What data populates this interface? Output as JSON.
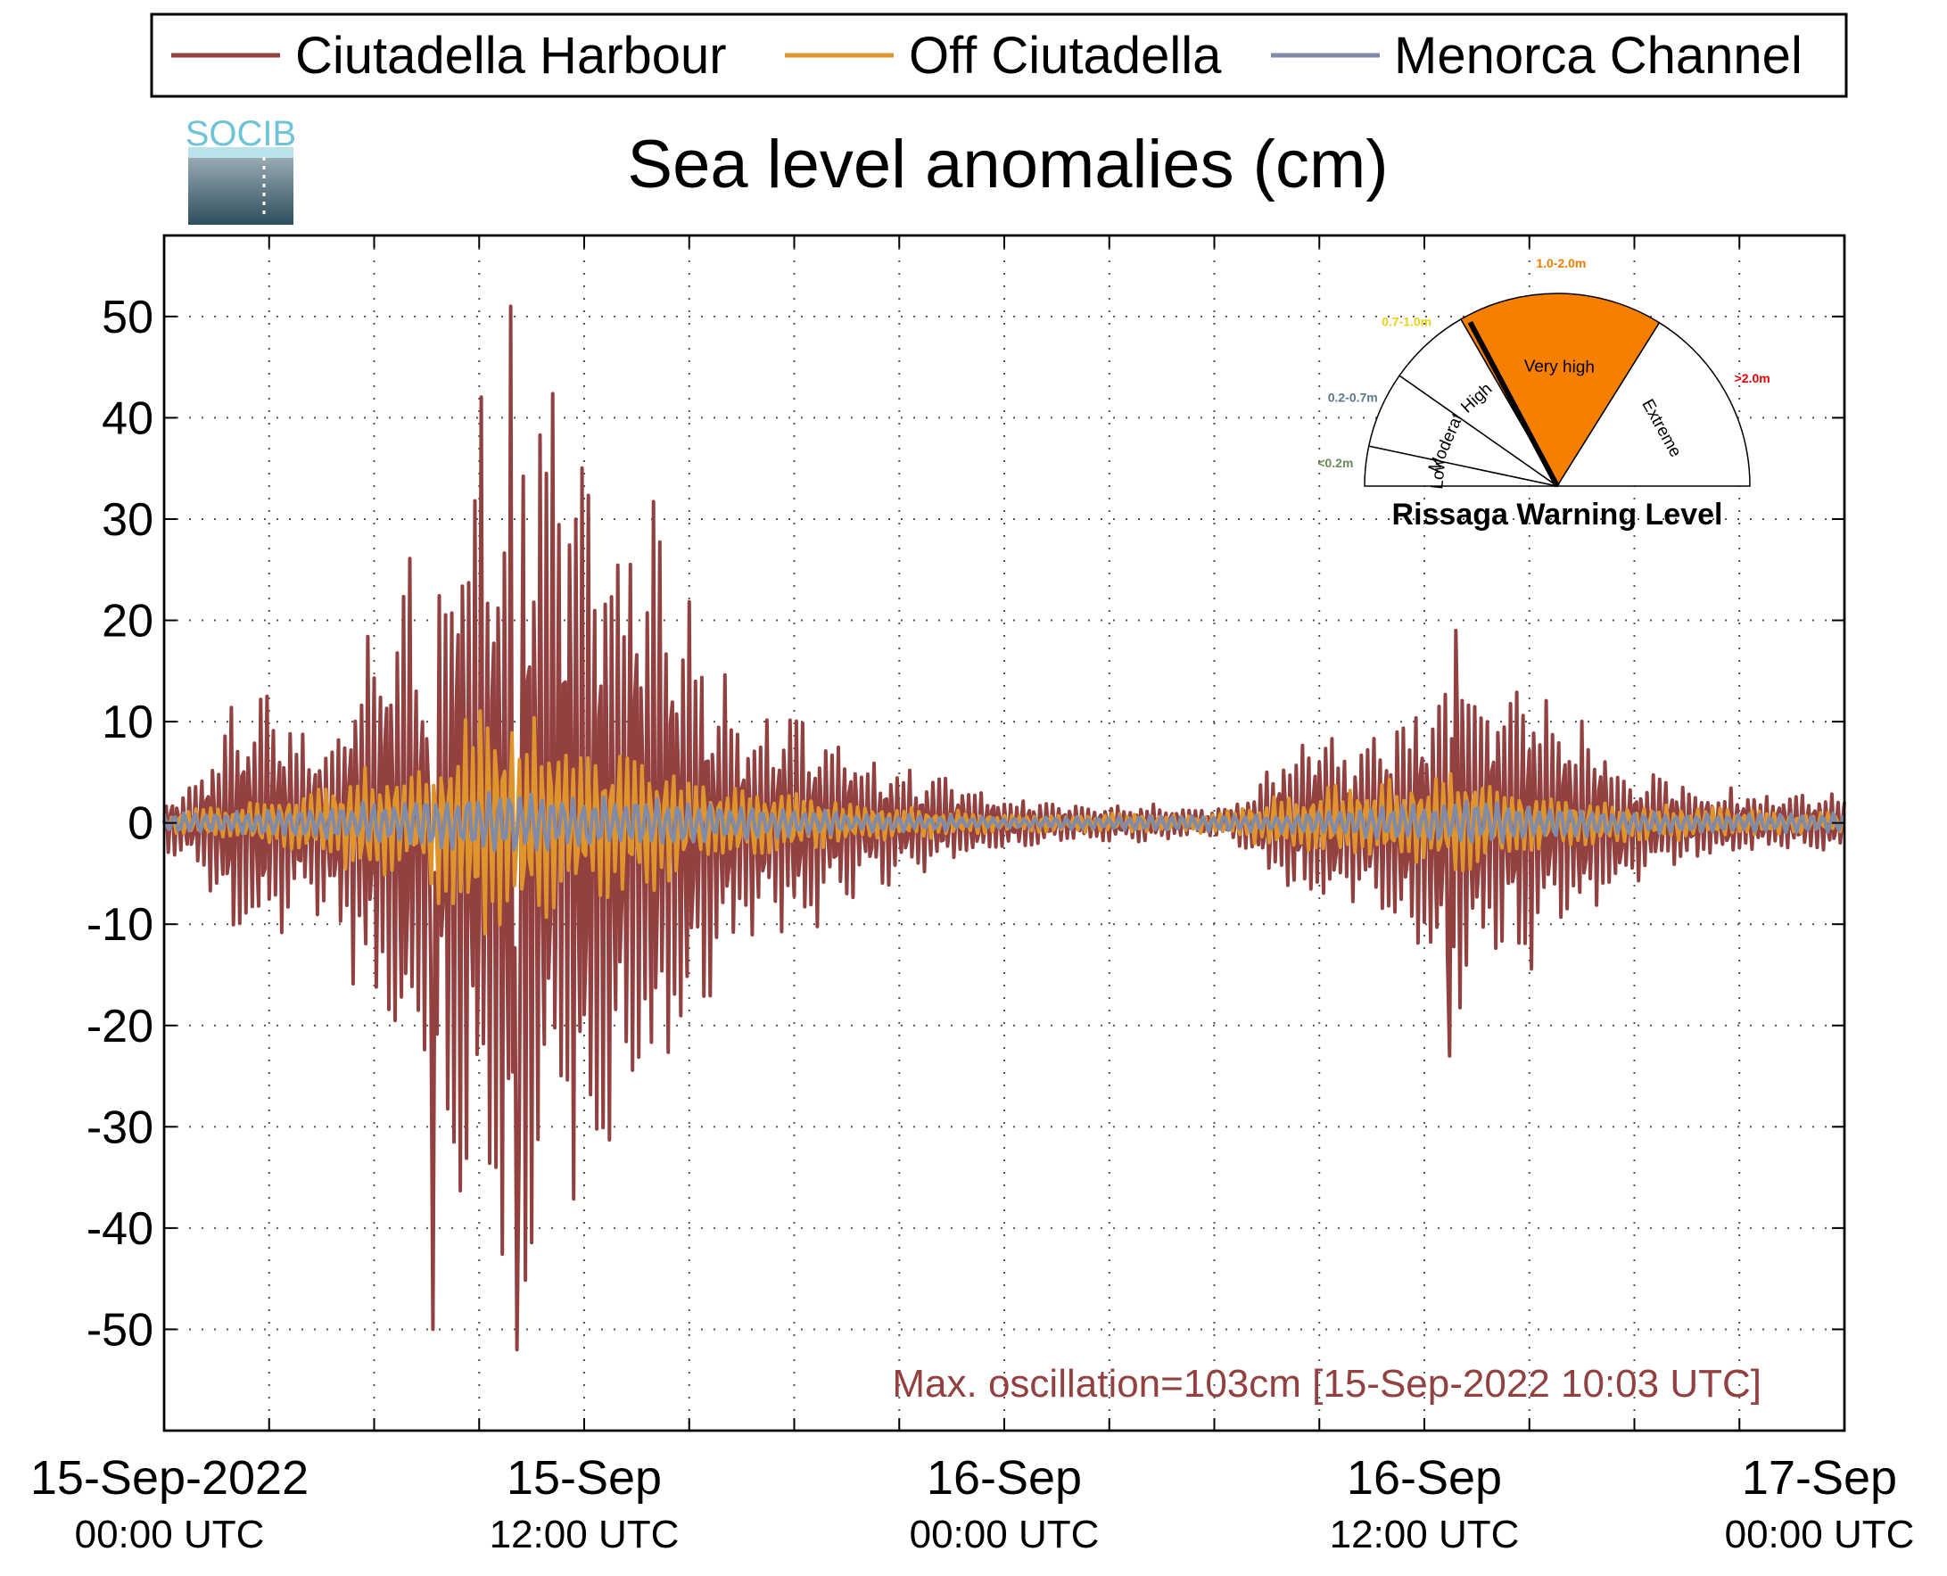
{
  "chart_data": {
    "type": "line",
    "title": "Sea level anomalies (cm)",
    "ylim": [
      -60,
      58
    ],
    "yticks": [
      50,
      40,
      30,
      20,
      10,
      0,
      -10,
      -20,
      -30,
      -40,
      -50
    ],
    "ytick_labels": [
      "50",
      "40",
      "30",
      "20",
      "10",
      "0",
      "-10",
      "-20",
      "-30",
      "-40",
      "-50"
    ],
    "xlim": [
      "2022-09-15T00:00",
      "2022-09-17T00:00"
    ],
    "xticks": [
      {
        "line1": "15-Sep-2022",
        "line2": "00:00 UTC",
        "hour": 0
      },
      {
        "line1": "15-Sep",
        "line2": "12:00 UTC",
        "hour": 12
      },
      {
        "line1": "16-Sep",
        "line2": "00:00 UTC",
        "hour": 24
      },
      {
        "line1": "16-Sep",
        "line2": "12:00 UTC",
        "hour": 36
      },
      {
        "line1": "17-Sep",
        "line2": "00:00 UTC",
        "hour": 48
      }
    ],
    "minor_xticks_hours": [
      3,
      6,
      9,
      15,
      18,
      21,
      27,
      30,
      33,
      39,
      42,
      45
    ],
    "grid": true,
    "legend_position": "top",
    "series": [
      {
        "name": "Ciutadella Harbour",
        "color": "#934040",
        "envelope_hours": [
          0,
          1,
          2,
          3,
          4,
          5,
          6,
          7,
          7.5,
          8,
          9,
          10,
          11,
          12,
          13,
          14,
          15,
          16,
          17,
          18,
          19,
          20,
          21,
          22,
          23,
          24,
          26,
          28,
          30,
          31,
          32,
          33,
          34,
          35,
          36,
          37,
          37.5,
          38,
          39,
          40,
          41,
          42,
          44,
          46,
          48
        ],
        "envelope_amplitude_cm": [
          3,
          5,
          13,
          14,
          10,
          12,
          22,
          30,
          22,
          38,
          44,
          50,
          45,
          40,
          35,
          32,
          22,
          15,
          12,
          12,
          10,
          7,
          6,
          5,
          4,
          3,
          2,
          2,
          1.5,
          3,
          8,
          10,
          8,
          10,
          14,
          19,
          16,
          15,
          15,
          12,
          10,
          6,
          4,
          3,
          3
        ],
        "extremes": [
          {
            "hour": 9.9,
            "value": 51
          },
          {
            "hour": 10.1,
            "value": -52
          },
          {
            "hour": 7.7,
            "value": -50
          },
          {
            "hour": 36.9,
            "value": 19
          },
          {
            "hour": 36.7,
            "value": -23
          }
        ]
      },
      {
        "name": "Off Ciutadella",
        "color": "#e0942c",
        "envelope_hours": [
          0,
          2,
          4,
          6,
          7,
          8,
          9,
          10,
          11,
          12,
          13,
          14,
          15,
          16,
          18,
          20,
          24,
          30,
          32,
          34,
          36,
          37,
          38,
          40,
          42,
          48
        ],
        "envelope_amplitude_cm": [
          1,
          2,
          3,
          6,
          5,
          9,
          14,
          12,
          10,
          8,
          8,
          7,
          5,
          4,
          3,
          2,
          1,
          1,
          3,
          4,
          5,
          6,
          4,
          3,
          2,
          1
        ]
      },
      {
        "name": "Menorca Channel",
        "color": "#7e8baa",
        "envelope_hours": [
          0,
          4,
          8,
          10,
          12,
          16,
          20,
          24,
          32,
          36,
          37,
          40,
          44,
          48
        ],
        "envelope_amplitude_cm": [
          1,
          1.5,
          3,
          3.5,
          3,
          2,
          1,
          0.6,
          1,
          2,
          2.5,
          1.5,
          1,
          1
        ]
      }
    ],
    "annotation": "Max. oscillation=103cm [15-Sep-2022 10:03 UTC]",
    "annotation_color": "#934040"
  },
  "logo": {
    "text": "SOCIB"
  },
  "rissaga_gauge": {
    "title": "Rissaga Warning Level",
    "sectors": [
      {
        "label": "Low",
        "range": "<0.2m",
        "range_color": "#6b8a5a",
        "fill": "#ffffff",
        "from_deg": 180,
        "to_deg": 168
      },
      {
        "label": "Moderate",
        "range": "0.2-0.7m",
        "range_color": "#5a7a8a",
        "fill": "#ffffff",
        "from_deg": 168,
        "to_deg": 145
      },
      {
        "label": "High",
        "range": "0.7-1.0m",
        "range_color": "#e6d21a",
        "fill": "#ffffff",
        "from_deg": 145,
        "to_deg": 120
      },
      {
        "label": "Very high",
        "range": "1.0-2.0m",
        "range_color": "#f07d00",
        "fill": "#f77f00",
        "from_deg": 120,
        "to_deg": 58
      },
      {
        "label": "Extreme",
        "range": ">2.0m",
        "range_color": "#e00000",
        "fill": "#ffffff",
        "from_deg": 58,
        "to_deg": 0
      }
    ],
    "needle_deg": 118,
    "needle_color": "#000000"
  }
}
